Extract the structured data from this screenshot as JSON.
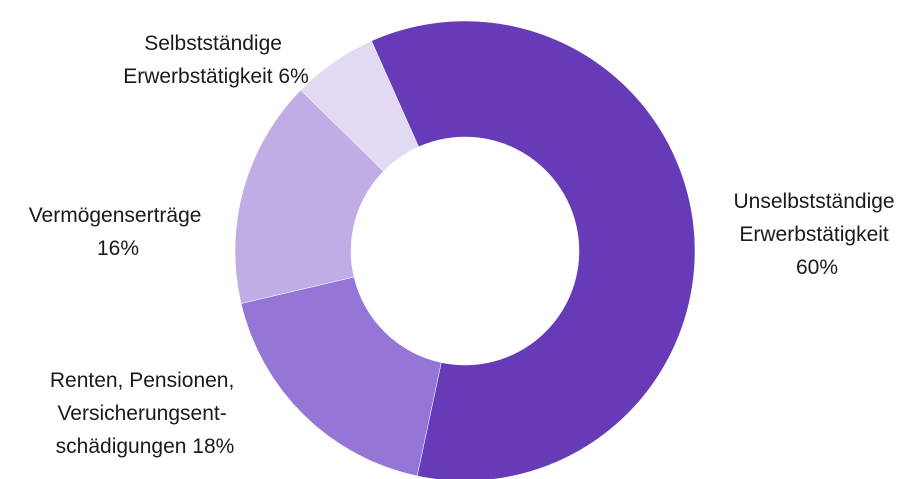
{
  "chart_data": {
    "type": "pie",
    "donut": true,
    "title": "",
    "slices": [
      {
        "label_lines": [
          "Unselbstständige",
          "Erwerbstätigkeit",
          "60%"
        ],
        "value": 60,
        "color": "#673ab7"
      },
      {
        "label_lines": [
          "Renten, Pensionen,",
          "Versicherungsent-",
          "schädigungen 18%"
        ],
        "value": 18,
        "color": "#9575d6"
      },
      {
        "label_lines": [
          "Vermögenserträge",
          "16%"
        ],
        "value": 16,
        "color": "#c0ade6"
      },
      {
        "label_lines": [
          "Selbstständige",
          "Erwerbstätigkeit 6%"
        ],
        "value": 6,
        "color": "#e2d9f3"
      }
    ]
  }
}
